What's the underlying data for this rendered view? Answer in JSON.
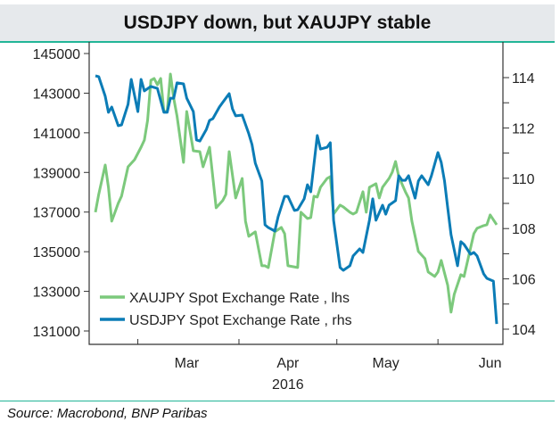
{
  "chart_data": {
    "type": "line",
    "title": "USDJPY down, but XAUJPY stable",
    "x_unit": "days since 2016-02-17",
    "xlim": [
      0,
      123
    ],
    "x_ticks": [
      13,
      44,
      74,
      105
    ],
    "x_tick_labels": [
      {
        "day": 28,
        "label": "Mar"
      },
      {
        "day": 59,
        "label": "Apr"
      },
      {
        "day": 89,
        "label": "May"
      },
      {
        "day": 121,
        "label": "Jun"
      }
    ],
    "x_year_label": "2016",
    "y_left": {
      "lim": [
        131000,
        145000
      ],
      "ticks": [
        "145000",
        "143000",
        "141000",
        "139000",
        "137000",
        "135000",
        "133000",
        "131000"
      ]
    },
    "y_right": {
      "lim": [
        104,
        114
      ],
      "ticks": [
        "114",
        "112",
        "110",
        "108",
        "106",
        "104"
      ]
    },
    "legend_position": "bottom-left",
    "series": [
      {
        "name": "XAUJPY Spot Exchange Rate , lhs",
        "axis": "left",
        "color": "#7cc97c",
        "x": [
          0,
          1,
          3,
          4,
          5,
          7,
          8,
          10,
          11,
          12,
          14,
          15,
          16,
          17,
          18,
          19,
          20,
          21,
          22,
          23,
          24,
          25,
          27,
          28,
          30,
          32,
          33,
          35,
          37,
          39,
          40,
          41,
          43,
          45,
          46,
          47,
          49,
          51,
          52,
          53,
          55,
          57,
          58,
          59,
          62,
          63,
          65,
          66,
          67,
          68,
          69,
          71,
          72,
          73,
          75,
          76,
          78,
          79,
          80,
          82,
          83,
          84,
          86,
          87,
          88,
          90,
          91,
          92,
          93,
          95,
          96,
          97,
          99,
          101,
          102,
          104,
          105,
          106,
          108,
          109,
          110,
          112,
          113,
          115,
          116,
          117,
          119,
          120,
          121,
          123
        ],
        "y": [
          136990,
          137890,
          139375,
          138250,
          136540,
          137440,
          137800,
          139285,
          139465,
          139645,
          140275,
          140635,
          141625,
          143650,
          143740,
          143425,
          143740,
          142075,
          142075,
          143965,
          142750,
          141850,
          139510,
          142075,
          140095,
          140050,
          139285,
          140275,
          137215,
          137575,
          137890,
          140050,
          137710,
          138700,
          136540,
          135775,
          136000,
          134290,
          134290,
          134200,
          136000,
          136225,
          135910,
          134290,
          134200,
          136990,
          136675,
          136720,
          137800,
          137755,
          138250,
          138700,
          138790,
          136900,
          137350,
          137260,
          136990,
          136900,
          136990,
          138025,
          136990,
          138250,
          138430,
          137710,
          138250,
          138700,
          139015,
          139555,
          138790,
          138025,
          137710,
          136540,
          135010,
          134650,
          133975,
          133750,
          133975,
          134560,
          133300,
          131950,
          132850,
          133840,
          133750,
          135190,
          135910,
          136180,
          136315,
          136360,
          136855,
          136360
        ]
      },
      {
        "name": "USDJPY Spot Exchange Rate , rhs",
        "axis": "right",
        "color": "#0b7cb6",
        "x": [
          0,
          1,
          3,
          4,
          5,
          7,
          8,
          10,
          11,
          13,
          14,
          15,
          17,
          19,
          21,
          22,
          23,
          24,
          25,
          27,
          28,
          30,
          31,
          32,
          34,
          35,
          36,
          38,
          39,
          41,
          42,
          43,
          45,
          47,
          48,
          49,
          51,
          52,
          53,
          55,
          56,
          58,
          59,
          61,
          62,
          64,
          65,
          66,
          68,
          69,
          71,
          72,
          73,
          75,
          76,
          78,
          79,
          81,
          82,
          84,
          85,
          86,
          88,
          89,
          90,
          92,
          93,
          94,
          95,
          96,
          98,
          99,
          100,
          102,
          103,
          105,
          106,
          107,
          108,
          109,
          111,
          112,
          113,
          115,
          116,
          117,
          119,
          120,
          122,
          123
        ],
        "y": [
          114.07,
          114.04,
          113.26,
          112.62,
          112.83,
          112.09,
          112.12,
          112.94,
          113.93,
          112.65,
          113.93,
          113.47,
          113.65,
          113.57,
          112.62,
          112.62,
          113.18,
          113.18,
          113.79,
          113.75,
          113.18,
          112.65,
          111.52,
          111.48,
          111.94,
          112.3,
          112.37,
          112.83,
          113.01,
          113.36,
          112.76,
          112.48,
          112.51,
          111.77,
          111.34,
          110.6,
          109.89,
          108.15,
          108.04,
          107.9,
          108.47,
          109.28,
          109.28,
          108.72,
          108.75,
          109.18,
          109.74,
          109.46,
          111.7,
          111.16,
          111.23,
          111.41,
          108.33,
          106.45,
          106.34,
          106.52,
          106.91,
          107.19,
          107.05,
          108.33,
          109.18,
          108.33,
          108.93,
          108.57,
          108.93,
          109.11,
          110.1,
          109.92,
          109.92,
          110.1,
          109.21,
          109.89,
          110.1,
          109.74,
          110.1,
          111.02,
          110.63,
          109.89,
          108.82,
          107.76,
          106.52,
          107.48,
          107.37,
          106.98,
          107.05,
          106.91,
          106.2,
          106.02,
          105.91,
          104.21
        ]
      }
    ]
  },
  "source": "Source: Macrobond, BNP Paribas"
}
